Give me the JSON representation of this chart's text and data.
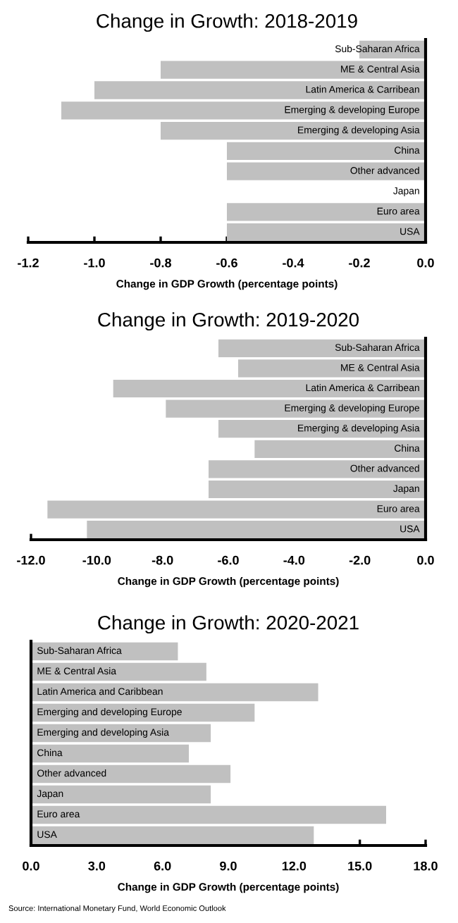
{
  "chart_data": [
    {
      "type": "bar",
      "orientation": "horizontal",
      "title": "Change in Growth: 2018-2019",
      "xlabel": "Change in GDP Growth (percentage points)",
      "categories": [
        "Sub-Saharan Africa",
        "ME & Central Asia",
        "Latin America & Carribean",
        "Emerging & developing Europe",
        "Emerging & developing Asia",
        "China",
        "Other advanced",
        "Japan",
        "Euro area",
        "USA"
      ],
      "values": [
        -0.2,
        -0.8,
        -1.0,
        -1.1,
        -0.8,
        -0.6,
        -0.6,
        0.0,
        -0.6,
        -0.6
      ],
      "color": "#c0c0c0",
      "xlim": [
        -1.2,
        0.0
      ],
      "xticks": [
        {
          "value": -1.2,
          "label": "-1.2"
        },
        {
          "value": -1.0,
          "label": "-1.0"
        },
        {
          "value": -0.8,
          "label": "-0.8"
        },
        {
          "value": -0.6,
          "label": "-0.6"
        },
        {
          "value": -0.4,
          "label": "-0.4"
        },
        {
          "value": -0.2,
          "label": "-0.2"
        },
        {
          "value": 0.0,
          "label": "0.0"
        }
      ],
      "grid": false,
      "legend": false
    },
    {
      "type": "bar",
      "orientation": "horizontal",
      "title": "Change in Growth: 2019-2020",
      "xlabel": "Change in GDP Growth (percentage points)",
      "categories": [
        "Sub-Saharan Africa",
        "ME & Central Asia",
        "Latin America & Carribean",
        "Emerging & developing Europe",
        "Emerging & developing Asia",
        "China",
        "Other advanced",
        "Japan",
        "Euro area",
        "USA"
      ],
      "values": [
        -6.3,
        -5.7,
        -9.5,
        -7.9,
        -6.3,
        -5.2,
        -6.6,
        -6.6,
        -11.5,
        -10.3
      ],
      "color": "#c0c0c0",
      "xlim": [
        -12.0,
        0.0
      ],
      "xticks": [
        {
          "value": -12,
          "label": "-12.0"
        },
        {
          "value": -10,
          "label": "-10.0"
        },
        {
          "value": -8,
          "label": "-8.0"
        },
        {
          "value": -6,
          "label": "-6.0"
        },
        {
          "value": -4,
          "label": "-4.0"
        },
        {
          "value": -2,
          "label": "-2.0"
        },
        {
          "value": 0,
          "label": "0.0"
        }
      ],
      "grid": false,
      "legend": false
    },
    {
      "type": "bar",
      "orientation": "horizontal",
      "title": "Change in Growth: 2020-2021",
      "xlabel": "Change in GDP Growth (percentage points)",
      "categories": [
        "Sub-Saharan Africa",
        "ME & Central Asia",
        "Latin America and Caribbean",
        "Emerging and developing Europe",
        "Emerging and developing Asia",
        "China",
        "Other advanced",
        "Japan",
        "Euro area",
        "USA"
      ],
      "values": [
        6.7,
        8.0,
        13.1,
        10.2,
        8.2,
        7.2,
        9.1,
        8.2,
        16.2,
        12.9
      ],
      "color": "#c0c0c0",
      "xlim": [
        0.0,
        18.0
      ],
      "xticks": [
        {
          "value": 0,
          "label": "0.0"
        },
        {
          "value": 3,
          "label": "3.0"
        },
        {
          "value": 6,
          "label": "6.0"
        },
        {
          "value": 9,
          "label": "9.0"
        },
        {
          "value": 12,
          "label": "12.0"
        },
        {
          "value": 15,
          "label": "15.0"
        },
        {
          "value": 18,
          "label": "18.0"
        }
      ],
      "grid": false,
      "legend": false,
      "annotations": [
        "Source: International Monetary Fund, World Economic Outlook"
      ]
    }
  ]
}
